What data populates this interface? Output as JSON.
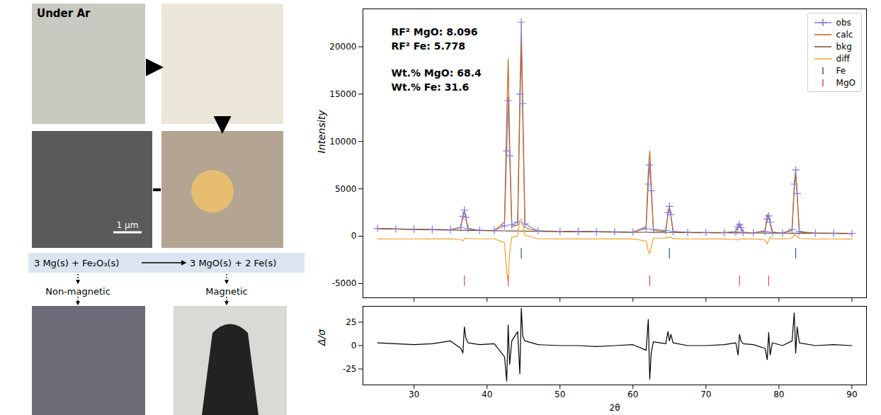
{
  "figure": {
    "photo_label": "Under Ar",
    "scale_bar": "1 μm",
    "equation": {
      "left": "3 Mg(s) + Fe₂O₃(s)",
      "right": "3 MgO(s) + 2 Fe(s)"
    },
    "labels": [
      "Non-magnetic",
      "Magnetic"
    ]
  },
  "chart_data": [
    {
      "type": "line",
      "ylabel": "Intensity",
      "tick_labels": "y",
      "legend": "top-right",
      "annotations": [
        "RF² MgO: 8.096",
        "RF² Fe: 5.778",
        "Wt.% MgO: 68.4",
        "Wt.% Fe: 31.6"
      ],
      "xlim": [
        23,
        92
      ],
      "xticks": [
        30,
        40,
        50,
        60,
        70,
        80,
        90
      ],
      "ylim": [
        -6500,
        24000
      ],
      "yticks": [
        -5000,
        0,
        5000,
        10000,
        15000,
        20000
      ],
      "x": [
        25,
        27.5,
        30,
        32.5,
        35,
        36.4,
        36.7,
        36.9,
        37.1,
        37.4,
        39,
        41,
        42.4,
        42.7,
        42.9,
        43.1,
        43.4,
        44.2,
        44.5,
        44.7,
        44.9,
        45.2,
        47,
        50,
        52.5,
        55,
        57.5,
        60,
        61.8,
        62.1,
        62.3,
        62.5,
        62.8,
        64.5,
        64.8,
        65.0,
        65.2,
        65.5,
        67.5,
        70,
        72.5,
        74.1,
        74.4,
        74.6,
        74.8,
        75.1,
        76.5,
        78.1,
        78.4,
        78.6,
        78.8,
        79.1,
        80.5,
        81.8,
        82.1,
        82.3,
        82.5,
        82.8,
        85,
        87.5,
        90
      ],
      "series": [
        {
          "name": "obs",
          "type": "line",
          "marker": "plus",
          "color": "#7f7fd5",
          "values": [
            820,
            770,
            730,
            700,
            690,
            900,
            2100,
            2750,
            2000,
            800,
            640,
            620,
            1100,
            9000,
            14300,
            8500,
            1200,
            1500,
            15000,
            22600,
            14000,
            1300,
            560,
            520,
            500,
            480,
            465,
            450,
            800,
            5500,
            7500,
            4800,
            700,
            600,
            2500,
            3150,
            2300,
            500,
            400,
            390,
            380,
            450,
            1000,
            1250,
            900,
            400,
            360,
            500,
            1800,
            2150,
            1500,
            420,
            340,
            700,
            5500,
            7000,
            4500,
            500,
            320,
            310,
            300
          ]
        },
        {
          "name": "calc",
          "type": "line",
          "color": "#c0661a",
          "values": [
            810,
            765,
            725,
            690,
            665,
            950,
            2300,
            2700,
            1900,
            750,
            615,
            595,
            1500,
            12500,
            18700,
            10000,
            1000,
            1200,
            13000,
            20500,
            12500,
            900,
            535,
            505,
            485,
            465,
            450,
            435,
            1000,
            6800,
            9000,
            5600,
            600,
            500,
            2300,
            3000,
            2100,
            450,
            395,
            380,
            370,
            500,
            1100,
            1250,
            850,
            380,
            350,
            600,
            2300,
            2250,
            1300,
            380,
            330,
            600,
            5000,
            6600,
            4200,
            420,
            315,
            305,
            298
          ]
        },
        {
          "name": "bkg",
          "type": "line",
          "color": "#7b4b3a",
          "values": [
            800,
            760,
            720,
            680,
            650,
            630,
            625,
            620,
            618,
            615,
            600,
            580,
            565,
            562,
            560,
            558,
            555,
            548,
            545,
            543,
            541,
            538,
            520,
            495,
            475,
            455,
            440,
            425,
            415,
            413,
            412,
            411,
            410,
            400,
            398,
            397,
            396,
            395,
            385,
            372,
            360,
            352,
            350,
            349,
            348,
            347,
            340,
            333,
            332,
            331,
            330,
            329,
            322,
            316,
            315,
            314,
            313,
            312,
            305,
            300,
            295
          ]
        },
        {
          "name": "diff",
          "type": "line",
          "color": "#f5a030",
          "values": [
            -290,
            -295,
            -295,
            -290,
            -275,
            -350,
            -500,
            -250,
            -200,
            -250,
            -275,
            -275,
            -700,
            -3800,
            -4700,
            -1800,
            -100,
            0,
            1700,
            1800,
            1200,
            100,
            -275,
            -285,
            -285,
            -285,
            -285,
            -285,
            -500,
            -1600,
            -1800,
            -1100,
            -200,
            -200,
            -100,
            -150,
            -100,
            -250,
            -295,
            -290,
            -290,
            -350,
            -400,
            -300,
            -250,
            -280,
            -290,
            -400,
            -800,
            -400,
            -100,
            -260,
            -290,
            -200,
            200,
            100,
            0,
            -220,
            -295,
            -295,
            -298
          ]
        },
        {
          "name": "Fe",
          "type": "scatter",
          "marker": "vline",
          "color": "#2f4fa8",
          "x": [
            44.7,
            65.0,
            82.3
          ],
          "values": [
            -1800,
            -1800,
            -1800
          ]
        },
        {
          "name": "MgO",
          "type": "scatter",
          "marker": "vline",
          "color": "#e04a5a",
          "x": [
            36.9,
            42.9,
            62.3,
            74.6,
            78.6
          ],
          "values": [
            -4700,
            -4700,
            -4700,
            -4700,
            -4700
          ]
        }
      ]
    },
    {
      "type": "line",
      "ylabel": "Δ/σ",
      "xlabel": "2θ",
      "xlim": [
        23,
        92
      ],
      "xticks": [
        30,
        40,
        50,
        60,
        70,
        80,
        90
      ],
      "ylim": [
        -42,
        42
      ],
      "yticks": [
        -25,
        0,
        25
      ],
      "x": [
        25,
        27.5,
        30,
        32.5,
        35,
        36.4,
        36.7,
        36.9,
        37.1,
        37.4,
        39,
        41,
        42.4,
        42.7,
        42.9,
        43.1,
        43.4,
        44.2,
        44.5,
        44.7,
        44.9,
        45.2,
        47,
        50,
        52.5,
        55,
        57.5,
        60,
        61.8,
        62.1,
        62.3,
        62.5,
        62.8,
        64.5,
        64.8,
        65.0,
        65.2,
        65.5,
        67.5,
        70,
        72.5,
        74.1,
        74.4,
        74.6,
        74.8,
        75.1,
        76.5,
        78.1,
        78.4,
        78.6,
        78.8,
        79.1,
        80.5,
        81.8,
        82.1,
        82.3,
        82.5,
        82.8,
        85,
        87.5,
        90
      ],
      "series": [
        {
          "type": "line",
          "color": "#000000",
          "values": [
            3,
            2,
            1,
            2,
            5,
            -3,
            -8,
            20,
            8,
            3,
            1,
            2,
            -12,
            -38,
            22,
            -20,
            5,
            15,
            -30,
            40,
            10,
            5,
            1,
            0,
            0,
            -1,
            0,
            1,
            -5,
            28,
            -36,
            -8,
            4,
            2,
            15,
            5,
            12,
            3,
            0,
            0,
            1,
            3,
            -10,
            12,
            5,
            2,
            1,
            -3,
            -15,
            14,
            -10,
            3,
            0,
            5,
            35,
            -8,
            20,
            3,
            0,
            1,
            0
          ]
        }
      ]
    }
  ]
}
